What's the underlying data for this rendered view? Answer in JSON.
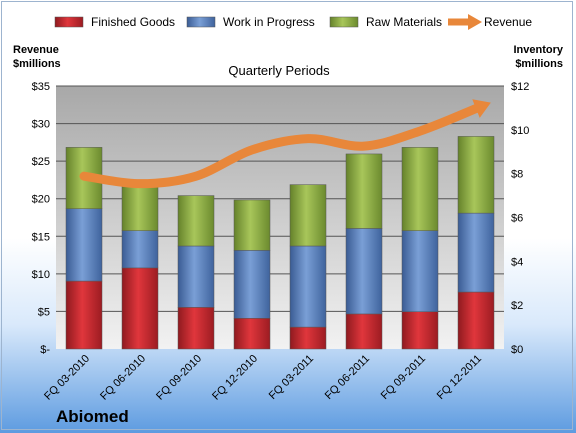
{
  "chart_data": {
    "type": "bar",
    "title": "Quarterly Periods",
    "company": "Abiomed",
    "categories": [
      "FQ 03-2010",
      "FQ 06-2010",
      "FQ 09-2010",
      "FQ 12-2010",
      "FQ 03-2011",
      "FQ 06-2011",
      "FQ 09-2011",
      "FQ 12-2011"
    ],
    "y_left": {
      "label_line1": "Revenue",
      "label_line2": "$millions",
      "range": [
        0,
        35
      ],
      "ticks": [
        0,
        5,
        10,
        15,
        20,
        25,
        30,
        35
      ],
      "tick_labels": [
        "$-",
        "$5",
        "$10",
        "$15",
        "$20",
        "$25",
        "$30",
        "$35"
      ]
    },
    "y_right": {
      "label_line1": "Inventory",
      "label_line2": "$millions",
      "range": [
        0,
        12
      ],
      "ticks": [
        0,
        2,
        4,
        6,
        8,
        10,
        12
      ],
      "tick_labels": [
        "$0",
        "$2",
        "$4",
        "$6",
        "$8",
        "$10",
        "$12"
      ]
    },
    "stack_axis": "right",
    "series": [
      {
        "name": "Finished Goods",
        "kind": "bar",
        "color": "#c0262d",
        "values": [
          3.1,
          3.7,
          1.9,
          1.4,
          1.0,
          1.6,
          1.7,
          2.6
        ]
      },
      {
        "name": "Work in Progress",
        "kind": "bar",
        "color": "#4f79b9",
        "values": [
          3.3,
          1.7,
          2.8,
          3.1,
          3.7,
          3.9,
          3.7,
          3.6
        ]
      },
      {
        "name": "Raw Materials",
        "kind": "bar",
        "color": "#86a63d",
        "values": [
          2.8,
          2.0,
          2.3,
          2.3,
          2.8,
          3.4,
          3.8,
          3.5
        ]
      },
      {
        "name": "Revenue",
        "kind": "line",
        "axis": "left",
        "color": "#e8873a",
        "values": [
          23.0,
          22.0,
          23.0,
          26.5,
          28.0,
          27.0,
          29.0,
          32.0
        ]
      }
    ],
    "grid": true,
    "legend": "top"
  }
}
